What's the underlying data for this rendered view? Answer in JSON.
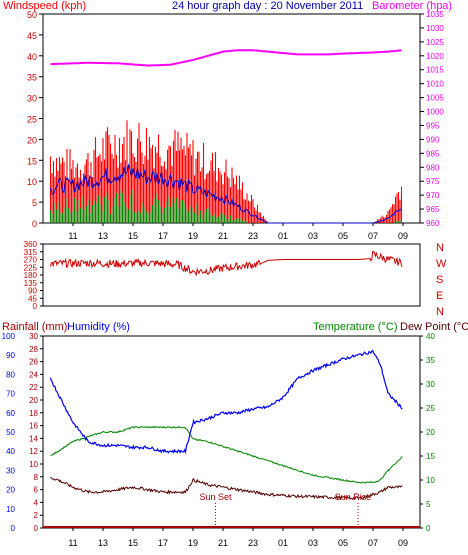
{
  "header": {
    "windspeed_label": "Windspeed (kph)",
    "title": "24 hour graph day : 20 November 2011",
    "barometer_label": "Barometer (hpa)"
  },
  "lower_header": {
    "rainfall_label": "Rainfall (mm)",
    "humidity_label": "Humidity (%)",
    "temperature_label": "Temperature (°C)",
    "dewpoint_label": "Dew Point (°C)"
  },
  "colors": {
    "windspeed": "#ff0000",
    "gust": "#ff0000",
    "average": "#0000cc",
    "green": "#008800",
    "barometer": "#ff00ff",
    "direction": "#cc0000",
    "humidity": "#0000ff",
    "temperature": "#008800",
    "dewpoint": "#550000",
    "rainfall": "#aa0000"
  },
  "x_ticks": [
    "11",
    "13",
    "15",
    "17",
    "19",
    "21",
    "23",
    "01",
    "03",
    "05",
    "07",
    "09"
  ],
  "compass": [
    "N",
    "W",
    "S",
    "E",
    "N"
  ],
  "annotations": {
    "sun_set": "Sun Set",
    "sun_rise": "Sun Rise"
  },
  "chart_data": [
    {
      "type": "area",
      "name": "wind",
      "ylim": [
        0,
        50
      ],
      "y_ticks": [
        0,
        5,
        10,
        15,
        20,
        25,
        30,
        35,
        40,
        45,
        50
      ],
      "y2lim": [
        960,
        1035
      ],
      "y2_ticks": [
        960,
        965,
        970,
        975,
        980,
        985,
        990,
        995,
        1000,
        1005,
        1010,
        1015,
        1020,
        1025,
        1030,
        1035
      ],
      "x_hours": [
        9.5,
        10,
        11,
        12,
        13,
        14,
        15,
        16,
        17,
        18,
        19,
        20,
        21,
        22,
        23,
        23.5,
        24,
        25,
        30,
        31,
        32,
        33
      ],
      "gust": [
        20,
        18,
        17,
        18,
        22,
        24,
        25,
        24,
        23,
        22,
        20,
        18,
        16,
        12,
        6,
        3,
        0,
        0,
        0,
        0,
        3,
        12
      ],
      "average": [
        8,
        9,
        9,
        10,
        11,
        12,
        12,
        11,
        11,
        10,
        8,
        7,
        6,
        4,
        2,
        1,
        0,
        0,
        0,
        0,
        1,
        4
      ],
      "low": [
        3,
        4,
        4,
        5,
        5,
        5,
        6,
        5,
        5,
        4,
        3,
        3,
        2,
        1,
        0,
        0,
        0,
        0,
        0,
        0,
        0,
        1
      ],
      "barometer_x": [
        9.5,
        12,
        14,
        16,
        17.5,
        19,
        20,
        21,
        22,
        23,
        24,
        25,
        26,
        27,
        28,
        29,
        30,
        31,
        32,
        33
      ],
      "barometer": [
        1017,
        1017.5,
        1017.3,
        1016.5,
        1016.8,
        1018.5,
        1020,
        1021.5,
        1022,
        1022,
        1021.5,
        1021,
        1020.5,
        1020.5,
        1020.5,
        1020.8,
        1021,
        1021.2,
        1021.5,
        1022
      ]
    },
    {
      "type": "line",
      "name": "wind direction",
      "ylim": [
        0,
        360
      ],
      "y_ticks": [
        0,
        45,
        90,
        135,
        180,
        225,
        270,
        315,
        360
      ],
      "x_hours": [
        9.5,
        12,
        14,
        16,
        18,
        19,
        20,
        21,
        22,
        23,
        23.5,
        24,
        25,
        30,
        30.8,
        31,
        32,
        33
      ],
      "values": [
        245,
        250,
        245,
        250,
        240,
        200,
        205,
        220,
        230,
        240,
        245,
        265,
        270,
        270,
        275,
        300,
        270,
        250
      ]
    },
    {
      "type": "line",
      "name": "temperature humidity",
      "humidity_ylim": [
        0,
        100
      ],
      "humidity_ticks": [
        0,
        10,
        20,
        30,
        40,
        50,
        60,
        70,
        80,
        90,
        100
      ],
      "rain_ylim": [
        0,
        30
      ],
      "rain_ticks": [
        0,
        2,
        4,
        6,
        8,
        10,
        12,
        14,
        16,
        18,
        20,
        22,
        24,
        26,
        28,
        30
      ],
      "temp_ylim": [
        0,
        40
      ],
      "temp_ticks": [
        0,
        5,
        10,
        15,
        20,
        25,
        30,
        35,
        40
      ],
      "x_hours": [
        9.5,
        10,
        11,
        12,
        13,
        14,
        15,
        16,
        17,
        18,
        18.5,
        19,
        20,
        21,
        22,
        23,
        24,
        25,
        26,
        27,
        28,
        29,
        30,
        30.5,
        31,
        31.5,
        32,
        33
      ],
      "humidity": [
        78,
        70,
        55,
        45,
        43,
        43,
        42,
        42,
        40,
        40,
        40,
        55,
        57,
        60,
        60,
        62,
        63,
        68,
        78,
        82,
        85,
        88,
        90,
        91,
        92,
        85,
        70,
        62
      ],
      "temperature": [
        15,
        16,
        18,
        19,
        20,
        20,
        21,
        21,
        21,
        21,
        21,
        18.5,
        18,
        17,
        16,
        15,
        14,
        13,
        12,
        11,
        10.5,
        10,
        9.5,
        9.5,
        9.5,
        10,
        12,
        15
      ],
      "dewpoint": [
        10.5,
        10,
        8.5,
        7.5,
        7.5,
        8,
        8.5,
        8,
        7.5,
        7.5,
        7.5,
        10,
        9,
        8.5,
        8,
        7.5,
        7,
        6.8,
        6.6,
        6.5,
        6.4,
        6.3,
        6.2,
        6.5,
        7,
        7.5,
        8.5,
        8.5
      ],
      "rainfall": [
        0,
        0,
        0,
        0,
        0,
        0,
        0,
        0,
        0,
        0,
        0,
        0,
        0,
        0,
        0,
        0,
        0,
        0,
        0,
        0,
        0,
        0,
        0,
        0,
        0,
        0,
        0,
        0
      ],
      "sun_set_hour": 20.5,
      "sun_rise_hour": 30.0
    }
  ]
}
